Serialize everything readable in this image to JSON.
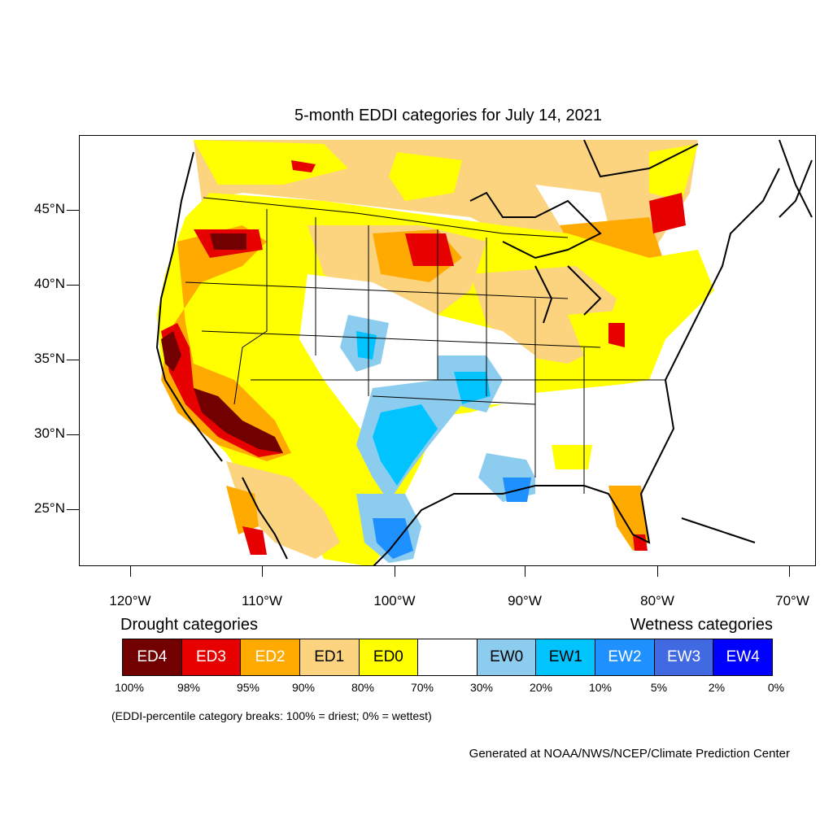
{
  "title": "5-month EDDI categories for July 14, 2021",
  "lat_labels": [
    "45°N",
    "40°N",
    "35°N",
    "30°N",
    "25°N"
  ],
  "lon_labels": [
    "120°W",
    "110°W",
    "100°W",
    "90°W",
    "80°W",
    "70°W"
  ],
  "legend": {
    "drought_heading": "Drought categories",
    "wetness_heading": "Wetness categories",
    "categories": [
      {
        "label": "ED4",
        "color": "#730000",
        "text_color": "#ffffff"
      },
      {
        "label": "ED3",
        "color": "#e60000",
        "text_color": "#ffffff"
      },
      {
        "label": "ED2",
        "color": "#ffaa00",
        "text_color": "#ffffff"
      },
      {
        "label": "ED1",
        "color": "#fcd37f",
        "text_color": "#000000"
      },
      {
        "label": "ED0",
        "color": "#ffff00",
        "text_color": "#000000"
      },
      {
        "label": "",
        "color": "#ffffff",
        "text_color": "#000000"
      },
      {
        "label": "EW0",
        "color": "#8ccdef",
        "text_color": "#000000"
      },
      {
        "label": "EW1",
        "color": "#00c3ff",
        "text_color": "#000000"
      },
      {
        "label": "EW2",
        "color": "#1e90ff",
        "text_color": "#ffffff"
      },
      {
        "label": "EW3",
        "color": "#4169e1",
        "text_color": "#ffffff"
      },
      {
        "label": "EW4",
        "color": "#0000ff",
        "text_color": "#ffffff"
      }
    ],
    "percentiles": [
      "100%",
      "98%",
      "95%",
      "90%",
      "80%",
      "70%",
      "30%",
      "20%",
      "10%",
      "5%",
      "2%",
      "0%"
    ]
  },
  "breaks_note": "(EDDI-percentile category breaks: 100% = driest; 0% = wettest)",
  "credit": "Generated at NOAA/NWS/NCEP/Climate Prediction Center"
}
